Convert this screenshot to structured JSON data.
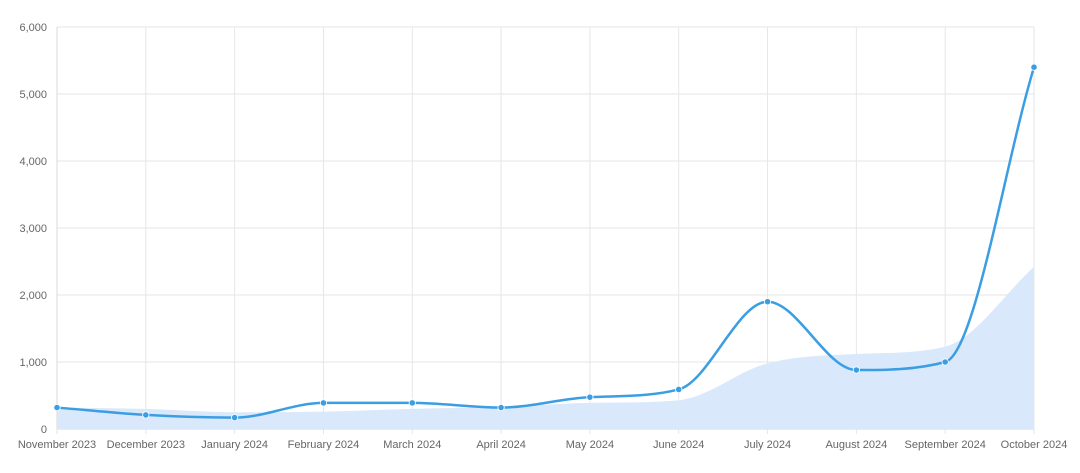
{
  "chart_data": {
    "type": "line",
    "title": "",
    "xlabel": "",
    "ylabel": "",
    "categories": [
      "November 2023",
      "December 2023",
      "January 2024",
      "February 2024",
      "March 2024",
      "April 2024",
      "May 2024",
      "June 2024",
      "July 2024",
      "August 2024",
      "September 2024",
      "October 2024"
    ],
    "y_ticks": [
      "0",
      "1,000",
      "2,000",
      "3,000",
      "4,000",
      "5,000",
      "6,000"
    ],
    "ylim": [
      0,
      6000
    ],
    "grid": true,
    "legend": "none",
    "series": [
      {
        "kind": "line",
        "values": [
          320,
          210,
          170,
          390,
          390,
          320,
          475,
          590,
          1900,
          880,
          1000,
          5400
        ],
        "color": "#3b9ee3"
      },
      {
        "kind": "area",
        "values": [
          320,
          300,
          250,
          260,
          300,
          330,
          390,
          430,
          980,
          1120,
          1230,
          2420
        ],
        "color": "#d9e9fb"
      }
    ]
  }
}
